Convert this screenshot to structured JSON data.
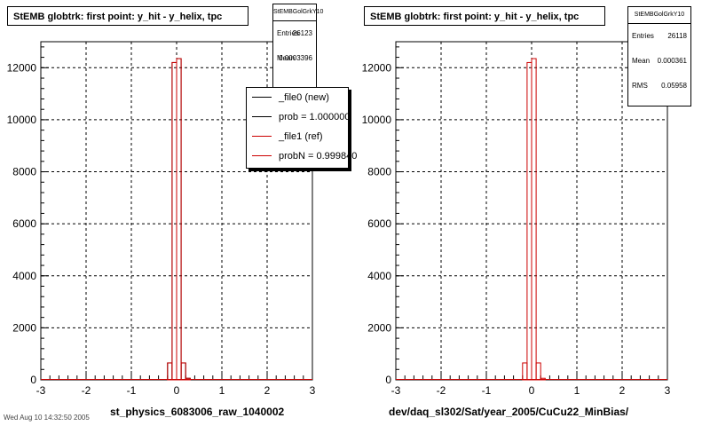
{
  "colors": {
    "new_hist": "#000000",
    "ref_hist": "#cc0000",
    "grid": "#000000"
  },
  "footer": "Wed Aug 10 14:32:50 2005",
  "chart_data": [
    {
      "type": "bar",
      "title": "StEMB globtrk: first point: y_hit - y_helix, tpc",
      "xlabel": "st_physics_6083006_raw_1040002",
      "ylabel": "",
      "xlim": [
        -3,
        3
      ],
      "ylim": [
        0,
        13000
      ],
      "xticks": [
        "-3",
        "-2",
        "-1",
        "0",
        "1",
        "2",
        "3"
      ],
      "yticks": [
        "0",
        "2000",
        "4000",
        "6000",
        "8000",
        "10000",
        "12000"
      ],
      "grid": true,
      "bin_edges": [
        -0.3,
        -0.2,
        -0.1,
        0.0,
        0.1,
        0.2,
        0.3
      ],
      "series": [
        {
          "name": "_file0 (new)",
          "values": [
            0,
            650,
            12200,
            12350,
            650,
            60
          ]
        },
        {
          "name": "_file1 (ref)",
          "values": [
            0,
            650,
            12200,
            12350,
            650,
            60
          ]
        }
      ],
      "stats": {
        "name": "StEMBGolGrkY10",
        "entries_label": "Entries",
        "entries": "26123",
        "mean_label": "Mean",
        "mean": "0.0003396"
      },
      "legend": {
        "position": "top-right",
        "entries": [
          "_file0 (new)",
          "prob = 1.000000",
          "_file1 (ref)",
          "probN = 0.999840"
        ]
      }
    },
    {
      "type": "bar",
      "title": "StEMB globtrk: first point: y_hit - y_helix, tpc",
      "xlabel": "dev/daq_sl302/Sat/year_2005/CuCu22_MinBias/",
      "ylabel": "",
      "xlim": [
        -3,
        3
      ],
      "ylim": [
        0,
        13000
      ],
      "xticks": [
        "-3",
        "-2",
        "-1",
        "0",
        "1",
        "2",
        "3"
      ],
      "yticks": [
        "0",
        "2000",
        "4000",
        "6000",
        "8000",
        "10000",
        "12000"
      ],
      "grid": true,
      "bin_edges": [
        -0.3,
        -0.2,
        -0.1,
        0.0,
        0.1,
        0.2,
        0.3
      ],
      "series": [
        {
          "name": "",
          "values": [
            0,
            650,
            12200,
            12350,
            650,
            60
          ]
        }
      ],
      "stats": {
        "name": "StEMBGolGrkY10",
        "entries_label": "Entries",
        "entries": "26118",
        "mean_label": "Mean",
        "mean": "0.000361",
        "rms_label": "RMS",
        "rms": "0.05958"
      }
    }
  ]
}
